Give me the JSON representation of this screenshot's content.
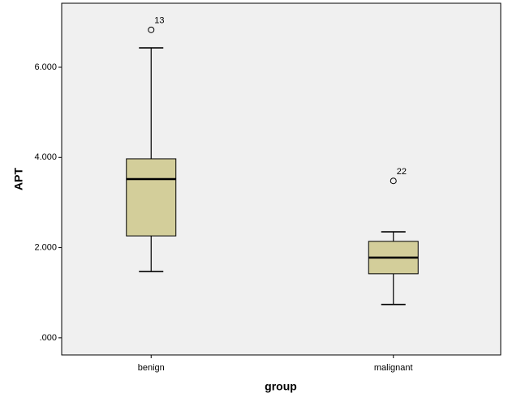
{
  "chart_data": {
    "type": "box",
    "x_label": "group",
    "y_label": "APT",
    "color": "#d3ce9a",
    "background": "#f0f0f0",
    "ylim": [
      -0.38,
      7.42
    ],
    "yticks": [
      {
        "value": 0,
        "label": ".000"
      },
      {
        "value": 2,
        "label": "2.000"
      },
      {
        "value": 4,
        "label": "4.000"
      },
      {
        "value": 6,
        "label": "6.000"
      }
    ],
    "categories": [
      "benign",
      "malignant"
    ],
    "boxes": [
      {
        "min": 1.47,
        "q1": 2.26,
        "median": 3.52,
        "q3": 3.97,
        "max": 6.43,
        "outliers": [
          {
            "value": 6.83,
            "label": "13"
          }
        ]
      },
      {
        "min": 0.74,
        "q1": 1.42,
        "median": 1.78,
        "q3": 2.14,
        "max": 2.35,
        "outliers": [
          {
            "value": 3.48,
            "label": "22"
          }
        ]
      }
    ]
  }
}
